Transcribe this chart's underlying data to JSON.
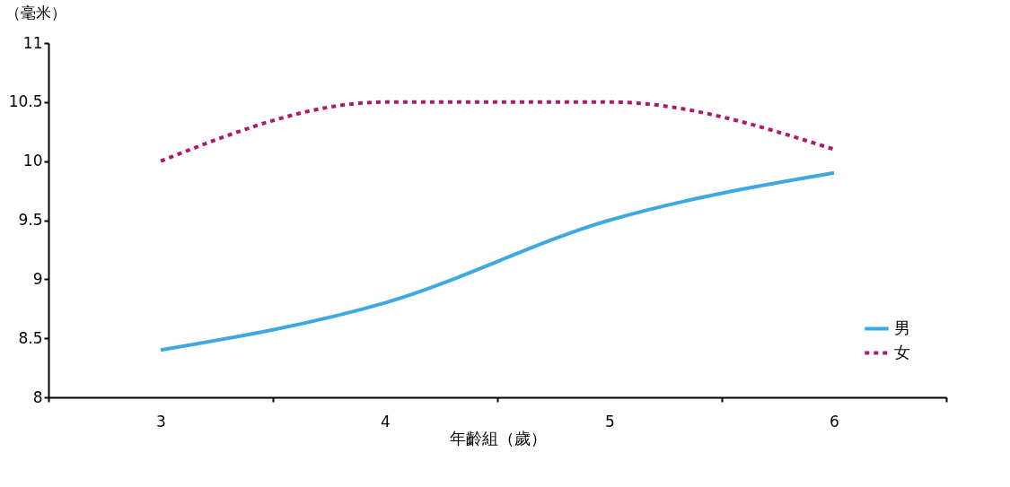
{
  "chart_data": {
    "type": "line",
    "ylabel": "（毫米）",
    "xlabel": "年齡組（歲）",
    "categories": [
      "3",
      "4",
      "5",
      "6"
    ],
    "series": [
      {
        "name": "男",
        "color": "#3ea8e0",
        "line_style": "solid",
        "values": [
          8.4,
          8.8,
          9.5,
          9.9
        ]
      },
      {
        "name": "女",
        "color": "#b0186a",
        "line_style": "dotted",
        "values": [
          10.0,
          10.5,
          10.5,
          10.1
        ]
      }
    ],
    "ylim": [
      8,
      11
    ],
    "yticks": [
      8,
      8.5,
      9,
      9.5,
      10,
      10.5,
      11
    ],
    "grid": false,
    "legend": "bottom right",
    "marker": "none"
  }
}
